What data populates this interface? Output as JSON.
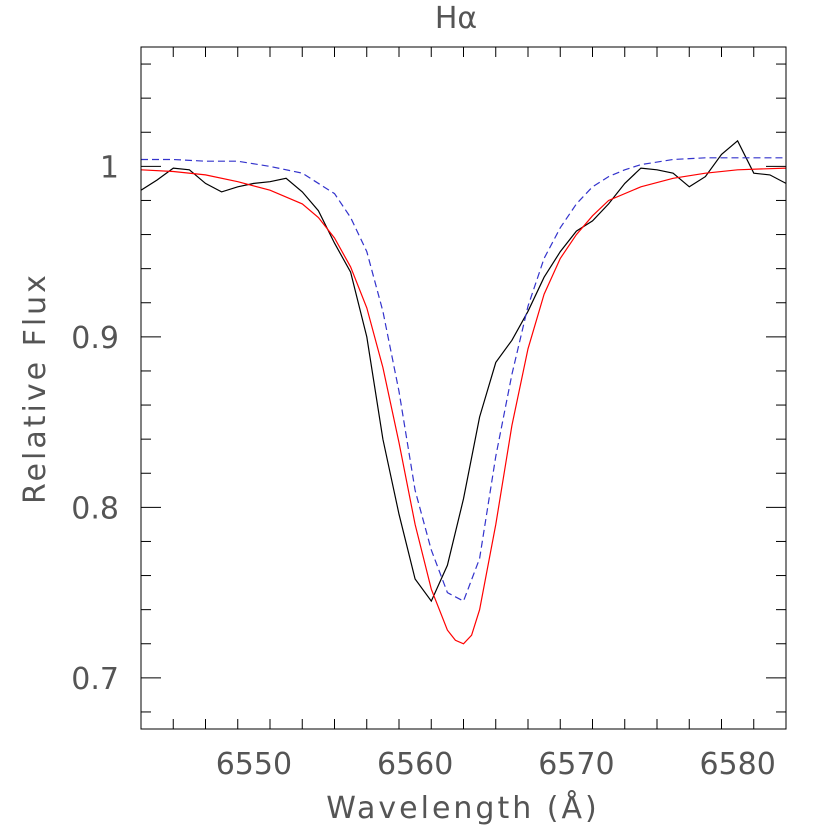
{
  "chart_data": {
    "type": "line",
    "title": "Hα",
    "xlabel": "Wavelength (Å)",
    "ylabel": "Relative Flux",
    "xlim": [
      6543,
      6583
    ],
    "ylim": [
      0.67,
      1.07
    ],
    "grid": false,
    "legend": "none",
    "x_ticks": [
      6550,
      6560,
      6570,
      6580
    ],
    "x_tick_labels": [
      "6550",
      "6560",
      "6570",
      "6580"
    ],
    "y_ticks": [
      0.7,
      0.8,
      0.9,
      1.0
    ],
    "y_tick_labels": [
      "0.7",
      "0.8",
      "0.9",
      "1"
    ],
    "series": [
      {
        "style": "solid",
        "color": "#000000",
        "x": [
          6543,
          6544,
          6545,
          6546,
          6547,
          6548,
          6549,
          6550,
          6551,
          6552,
          6553,
          6554,
          6555,
          6556,
          6557,
          6558,
          6559,
          6560,
          6561,
          6562,
          6563,
          6564,
          6565,
          6566,
          6567,
          6568,
          6569,
          6570,
          6571,
          6572,
          6573,
          6574,
          6575,
          6576,
          6577,
          6578,
          6579,
          6580,
          6581,
          6582,
          6583
        ],
        "y": [
          0.986,
          0.992,
          0.999,
          0.998,
          0.99,
          0.985,
          0.988,
          0.99,
          0.991,
          0.993,
          0.985,
          0.974,
          0.955,
          0.938,
          0.9,
          0.84,
          0.796,
          0.758,
          0.745,
          0.766,
          0.805,
          0.853,
          0.885,
          0.898,
          0.915,
          0.935,
          0.95,
          0.962,
          0.968,
          0.978,
          0.99,
          0.999,
          0.998,
          0.996,
          0.988,
          0.994,
          1.007,
          1.015,
          0.996,
          0.995,
          0.99
        ]
      },
      {
        "style": "solid",
        "color": "#ff0000",
        "x": [
          6543,
          6545,
          6547,
          6549,
          6551,
          6553,
          6554,
          6555,
          6556,
          6557,
          6558,
          6559,
          6560,
          6561,
          6562,
          6562.5,
          6563,
          6563.5,
          6564,
          6565,
          6566,
          6567,
          6568,
          6569,
          6570,
          6571,
          6572,
          6574,
          6576,
          6578,
          6580,
          6583
        ],
        "y": [
          0.998,
          0.997,
          0.995,
          0.991,
          0.986,
          0.978,
          0.97,
          0.958,
          0.941,
          0.917,
          0.882,
          0.838,
          0.79,
          0.752,
          0.728,
          0.722,
          0.72,
          0.725,
          0.74,
          0.79,
          0.848,
          0.893,
          0.925,
          0.946,
          0.96,
          0.971,
          0.98,
          0.988,
          0.993,
          0.996,
          0.998,
          0.999
        ]
      },
      {
        "style": "dashed",
        "color": "#3333cc",
        "x": [
          6543,
          6545,
          6547,
          6549,
          6551,
          6553,
          6555,
          6556,
          6557,
          6558,
          6559,
          6560,
          6561,
          6562,
          6563,
          6564,
          6565,
          6566,
          6567,
          6568,
          6569,
          6570,
          6571,
          6572,
          6573,
          6574,
          6576,
          6578,
          6580,
          6583
        ],
        "y": [
          1.004,
          1.004,
          1.003,
          1.003,
          1.0,
          0.996,
          0.984,
          0.97,
          0.95,
          0.915,
          0.868,
          0.81,
          0.775,
          0.75,
          0.745,
          0.77,
          0.83,
          0.878,
          0.918,
          0.946,
          0.964,
          0.978,
          0.988,
          0.994,
          0.998,
          1.001,
          1.004,
          1.005,
          1.005,
          1.005
        ]
      }
    ]
  }
}
